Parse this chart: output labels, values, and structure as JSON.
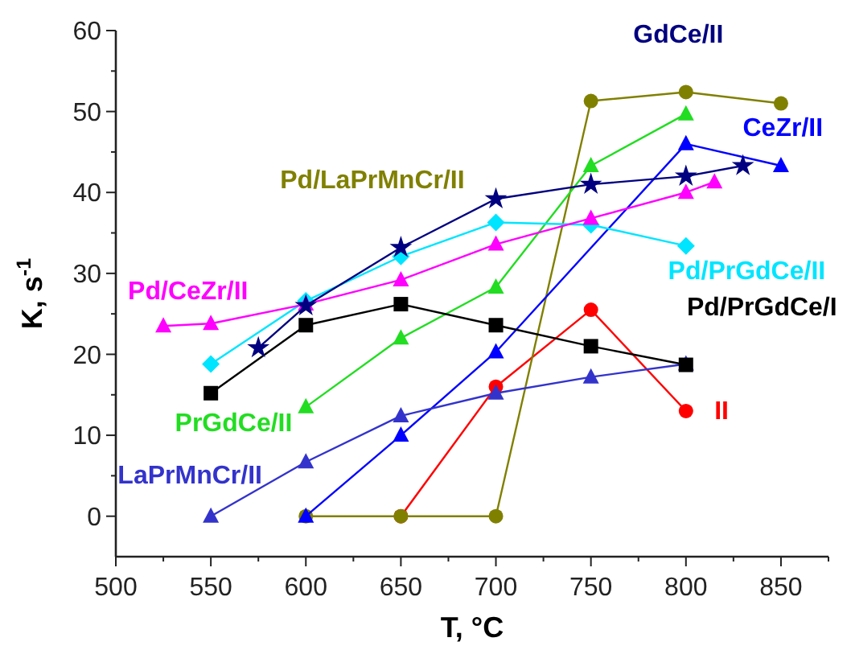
{
  "chart_data": {
    "type": "line",
    "xlabel": "T, °C",
    "ylabel": "K, s$^{-1}$",
    "xlim": [
      500,
      875
    ],
    "xticks": [
      500,
      550,
      600,
      650,
      700,
      750,
      800,
      850
    ],
    "ylim": [
      -5,
      60
    ],
    "yticks": [
      0,
      10,
      20,
      30,
      40,
      50,
      60
    ],
    "grid": false,
    "series": [
      {
        "name": "II",
        "color": "#ff0000",
        "marker": "circle",
        "x": [
          650,
          700,
          750,
          800
        ],
        "values": [
          0,
          16,
          25.5,
          13
        ]
      },
      {
        "name": "Pd/LaPrMnCr/II",
        "color": "#808000",
        "marker": "circle",
        "x": [
          600,
          650,
          700,
          750,
          800,
          850
        ],
        "values": [
          0,
          0,
          0,
          51.3,
          52.4,
          51
        ]
      },
      {
        "name": "PrGdCe/II",
        "color": "#22dd22",
        "marker": "triangle",
        "x": [
          600,
          650,
          700,
          750,
          800
        ],
        "values": [
          13.5,
          22,
          28.3,
          43.3,
          49.7
        ]
      },
      {
        "name": "CeZr/II",
        "color": "#0000ff",
        "marker": "triangle",
        "x": [
          600,
          650,
          700,
          800,
          850
        ],
        "values": [
          0,
          10,
          20.3,
          46,
          43.3
        ]
      },
      {
        "name": "LaPrMnCr/II",
        "color": "#3333cc",
        "marker": "triangle",
        "x": [
          550,
          600,
          650,
          700,
          750,
          800
        ],
        "values": [
          0,
          6.7,
          12.4,
          15.2,
          17.2,
          18.8
        ]
      },
      {
        "name": "Pd/PrGdCe/I",
        "color": "#000000",
        "marker": "square",
        "x": [
          550,
          600,
          650,
          700,
          750,
          800
        ],
        "values": [
          15.2,
          23.6,
          26.2,
          23.6,
          21,
          18.7
        ]
      },
      {
        "name": "Pd/PrGdCe/II",
        "color": "#00e5ff",
        "marker": "diamond",
        "x": [
          550,
          600,
          650,
          700,
          750,
          800
        ],
        "values": [
          18.8,
          26.6,
          32.1,
          36.3,
          36,
          33.4
        ]
      },
      {
        "name": "Pd/CeZr/II",
        "color": "#ff00ff",
        "marker": "triangle",
        "x": [
          525,
          550,
          600,
          650,
          700,
          750,
          800,
          815
        ],
        "values": [
          23.5,
          23.8,
          26.2,
          29.2,
          33.6,
          36.8,
          40,
          41.3
        ]
      },
      {
        "name": "GdCe/II",
        "color": "#000080",
        "marker": "star",
        "x": [
          575,
          600,
          650,
          700,
          750,
          800,
          830
        ],
        "values": [
          20.8,
          26,
          33.2,
          39.2,
          41,
          42,
          43.3
        ]
      }
    ]
  }
}
